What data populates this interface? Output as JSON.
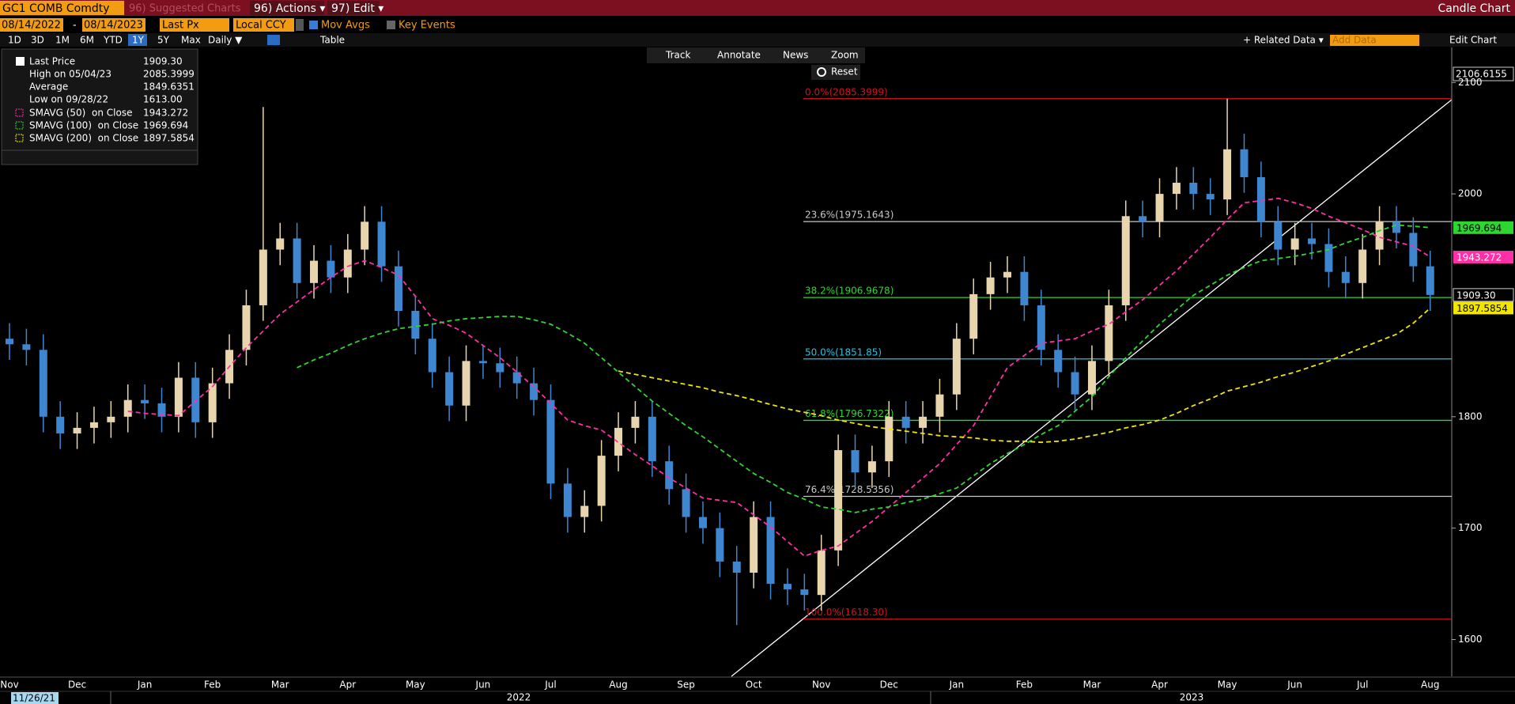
{
  "toolbar": {
    "ticker": "GC1 COMB Comdty",
    "suggested": "96) Suggested Charts",
    "actions": "96) Actions ▾",
    "edit": "97) Edit ▾",
    "view": "Candle Chart",
    "start_date": "08/14/2022",
    "separator": "-",
    "end_date": "08/14/2023",
    "price_field": "Last Px",
    "currency": "Local CCY",
    "mov_avgs": "Mov Avgs",
    "key_events": "Key Events",
    "periods": [
      "1D",
      "3D",
      "1M",
      "6M",
      "YTD",
      "1Y",
      "5Y",
      "Max"
    ],
    "frequency": "Daily ▼",
    "table": "Table",
    "related_data": "+ Related Data ▾",
    "add_data": "Add Data",
    "edit_chart": "Edit Chart"
  },
  "chart_tools": {
    "track": "Track",
    "annotate": "Annotate",
    "news": "News",
    "zoom": "Zoom",
    "reset": "Reset"
  },
  "chart_data": {
    "type": "candlestick",
    "categories": [
      "Nov",
      null,
      null,
      null,
      "Dec",
      null,
      null,
      null,
      "Jan",
      null,
      null,
      null,
      "Feb",
      null,
      null,
      null,
      "Mar",
      null,
      null,
      null,
      "Apr",
      null,
      null,
      null,
      "May",
      null,
      null,
      null,
      "Jun",
      null,
      null,
      null,
      "Jul",
      null,
      null,
      null,
      "Aug",
      null,
      null,
      null,
      "Sep",
      null,
      null,
      null,
      "Oct",
      null,
      null,
      null,
      "Nov",
      null,
      null,
      null,
      "Dec",
      null,
      null,
      null,
      "Jan",
      null,
      null,
      null,
      "Feb",
      null,
      null,
      null,
      "Mar",
      null,
      null,
      null,
      "Apr",
      null,
      null,
      null,
      "May",
      null,
      null,
      null,
      "Jun",
      null,
      null,
      null,
      "Jul",
      null,
      null,
      null,
      "Aug"
    ],
    "open": [
      1870,
      1865,
      1860,
      1800,
      1785,
      1790,
      1795,
      1800,
      1815,
      1812,
      1800,
      1835,
      1795,
      1830,
      1860,
      1900,
      1950,
      1960,
      1920,
      1940,
      1925,
      1950,
      1975,
      1935,
      1895,
      1870,
      1840,
      1810,
      1850,
      1848,
      1840,
      1830,
      1815,
      1740,
      1710,
      1720,
      1765,
      1790,
      1800,
      1760,
      1735,
      1710,
      1700,
      1670,
      1660,
      1710,
      1650,
      1645,
      1640,
      1680,
      1770,
      1750,
      1760,
      1800,
      1790,
      1800,
      1820,
      1870,
      1910,
      1925,
      1930,
      1900,
      1860,
      1840,
      1820,
      1850,
      1900,
      1980,
      1975,
      2000,
      2010,
      2000,
      1995,
      2040,
      2015,
      1975,
      1950,
      1960,
      1955,
      1930,
      1920,
      1950,
      1975,
      1965,
      1935
    ],
    "high": [
      1884,
      1879,
      1874,
      1814,
      1804,
      1809,
      1814,
      1829,
      1829,
      1826,
      1849,
      1849,
      1844,
      1874,
      1914,
      2078,
      1974,
      1974,
      1954,
      1954,
      1964,
      1989,
      1989,
      1949,
      1909,
      1884,
      1854,
      1864,
      1864,
      1862,
      1854,
      1844,
      1829,
      1754,
      1734,
      1779,
      1804,
      1814,
      1814,
      1774,
      1749,
      1724,
      1714,
      1684,
      1724,
      1724,
      1664,
      1659,
      1694,
      1784,
      1784,
      1774,
      1814,
      1814,
      1814,
      1834,
      1884,
      1924,
      1939,
      1944,
      1944,
      1914,
      1874,
      1854,
      1864,
      1914,
      1994,
      1994,
      2014,
      2024,
      2024,
      2014,
      2085.4,
      2054,
      2029,
      1989,
      1974,
      1974,
      1969,
      1944,
      1964,
      1989,
      1989,
      1979,
      1949
    ],
    "low": [
      1851,
      1846,
      1786,
      1771,
      1771,
      1776,
      1781,
      1786,
      1798,
      1786,
      1786,
      1781,
      1781,
      1816,
      1846,
      1886,
      1936,
      1906,
      1906,
      1911,
      1911,
      1936,
      1921,
      1881,
      1856,
      1826,
      1796,
      1796,
      1834,
      1826,
      1816,
      1801,
      1726,
      1696,
      1696,
      1706,
      1751,
      1776,
      1746,
      1721,
      1696,
      1686,
      1656,
      1613,
      1646,
      1636,
      1631,
      1626,
      1626,
      1666,
      1736,
      1736,
      1746,
      1776,
      1776,
      1786,
      1806,
      1856,
      1896,
      1911,
      1886,
      1846,
      1826,
      1806,
      1806,
      1836,
      1886,
      1961,
      1961,
      1986,
      1986,
      1981,
      1981,
      2001,
      1961,
      1936,
      1936,
      1941,
      1916,
      1906,
      1906,
      1936,
      1951,
      1921,
      1895
    ],
    "close": [
      1865,
      1860,
      1800,
      1785,
      1790,
      1795,
      1800,
      1815,
      1812,
      1800,
      1835,
      1795,
      1830,
      1860,
      1900,
      1950,
      1960,
      1920,
      1940,
      1925,
      1950,
      1975,
      1935,
      1895,
      1870,
      1840,
      1810,
      1850,
      1848,
      1840,
      1830,
      1815,
      1740,
      1710,
      1720,
      1765,
      1790,
      1800,
      1760,
      1735,
      1710,
      1700,
      1670,
      1660,
      1710,
      1650,
      1645,
      1640,
      1680,
      1770,
      1750,
      1760,
      1800,
      1790,
      1800,
      1820,
      1870,
      1910,
      1925,
      1930,
      1900,
      1860,
      1840,
      1820,
      1850,
      1900,
      1980,
      1975,
      2000,
      2010,
      2000,
      1995,
      2040,
      2015,
      1975,
      1950,
      1960,
      1955,
      1930,
      1920,
      1950,
      1975,
      1965,
      1935,
      1909.3
    ],
    "up_color": "#e8d5ae",
    "down_color": "#3f86d0",
    "series": [
      {
        "name": "SMAVG (50)  on Close",
        "value_label": "1943.272",
        "color": "#ff2fa8",
        "label_color": "#ffffff",
        "values": [
          null,
          null,
          null,
          null,
          null,
          null,
          null,
          1805,
          1803,
          1802,
          1801,
          1814,
          1827,
          1845,
          1862,
          1877,
          1892,
          1903,
          1914,
          1925,
          1935,
          1940,
          1934,
          1927,
          1908,
          1888,
          1882,
          1875,
          1864,
          1853,
          1840,
          1827,
          1812,
          1797,
          1792,
          1788,
          1777,
          1766,
          1756,
          1745,
          1736,
          1727,
          1725,
          1723,
          1712,
          1701,
          1688,
          1675,
          1680,
          1684,
          1695,
          1706,
          1719,
          1732,
          1745,
          1758,
          1775,
          1792,
          1818,
          1844,
          1855,
          1866,
          1868,
          1870,
          1877,
          1883,
          1894,
          1905,
          1918,
          1931,
          1946,
          1961,
          1977,
          1992,
          1994,
          1996,
          1992,
          1987,
          1980,
          1974,
          1968,
          1961,
          1957,
          1953,
          1943.272
        ]
      },
      {
        "name": "SMAVG (100)  on Close",
        "value_label": "1969.694",
        "color": "#2fd62f",
        "label_color": "#000000",
        "values": [
          null,
          null,
          null,
          null,
          null,
          null,
          null,
          null,
          null,
          null,
          null,
          null,
          null,
          null,
          null,
          null,
          null,
          1844,
          1851,
          1857,
          1864,
          1870,
          1875,
          1879,
          1881,
          1883,
          1886,
          1888,
          1889,
          1890,
          1890,
          1887,
          1883,
          1875,
          1866,
          1853,
          1840,
          1827,
          1814,
          1803,
          1792,
          1782,
          1771,
          1760,
          1749,
          1741,
          1732,
          1726,
          1719,
          1717,
          1714,
          1717,
          1719,
          1723,
          1726,
          1731,
          1736,
          1747,
          1758,
          1767,
          1775,
          1784,
          1792,
          1805,
          1818,
          1836,
          1853,
          1868,
          1883,
          1896,
          1909,
          1918,
          1927,
          1934,
          1940,
          1942,
          1944,
          1947,
          1950,
          1956,
          1961,
          1967,
          1972,
          1971,
          1969.694
        ]
      },
      {
        "name": "SMAVG (200)  on Close",
        "value_label": "1897.5854",
        "color": "#f2e600",
        "label_color": "#000000",
        "values": [
          null,
          null,
          null,
          null,
          null,
          null,
          null,
          null,
          null,
          null,
          null,
          null,
          null,
          null,
          null,
          null,
          null,
          null,
          null,
          null,
          null,
          null,
          null,
          null,
          null,
          null,
          null,
          null,
          null,
          null,
          null,
          null,
          null,
          null,
          null,
          null,
          1841,
          1838,
          1835,
          1832,
          1829,
          1826,
          1822,
          1819,
          1815,
          1811,
          1807,
          1804,
          1801,
          1797,
          1794,
          1791,
          1789,
          1787,
          1785,
          1783,
          1782,
          1781,
          1779,
          1778,
          1778,
          1777,
          1778,
          1780,
          1783,
          1786,
          1790,
          1793,
          1797,
          1803,
          1810,
          1816,
          1823,
          1827,
          1831,
          1836,
          1840,
          1845,
          1850,
          1856,
          1862,
          1868,
          1874,
          1884,
          1897.5854
        ]
      }
    ],
    "ylim": [
      1567,
      2130
    ],
    "yticks": [
      1600,
      1700,
      1800,
      2000,
      2100
    ],
    "fib_levels": [
      {
        "value": 2085.3999,
        "label": "0.0%(2085.3999)",
        "color": "#d0121e"
      },
      {
        "value": 1975.1643,
        "label": "23.6%(1975.1643)",
        "color": "#c8c8c8"
      },
      {
        "value": 1906.9678,
        "label": "38.2%(1906.9678)",
        "color": "#2fd62f"
      },
      {
        "value": 1851.85,
        "label": "50.0%(1851.85)",
        "color": "#2cc0e0"
      },
      {
        "value": 1796.7322,
        "label": "61.8%(1796.7322)",
        "color": "#2fd62f"
      },
      {
        "value": 1728.5356,
        "label": "76.4%(1728.5356)",
        "color": "#c8c8c8"
      },
      {
        "value": 1618.3,
        "label": "100.0%(1618.30)",
        "color": "#d0121e"
      }
    ],
    "legend": [
      {
        "label": "Last Price",
        "value": "1909.30"
      },
      {
        "label": "High on 05/04/23",
        "value": "2085.3999"
      },
      {
        "label": "Average",
        "value": "1849.6351"
      },
      {
        "label": "Low on 09/28/22",
        "value": "1613.00"
      }
    ],
    "years": [
      "2022",
      "2023"
    ],
    "start_label": "11/26/21",
    "axis_top_label": "2106.6155"
  }
}
